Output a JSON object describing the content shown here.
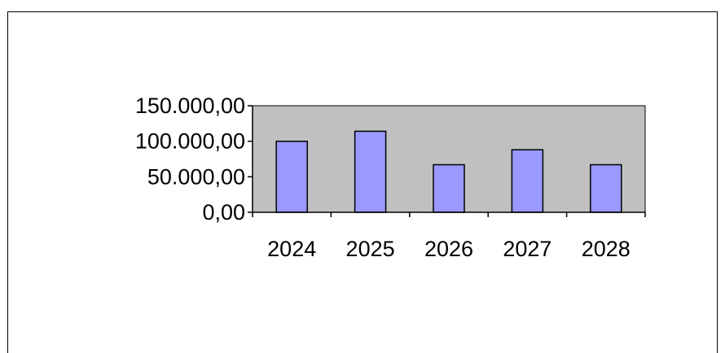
{
  "chart_data": {
    "type": "bar",
    "categories": [
      "2024",
      "2025",
      "2026",
      "2027",
      "2028"
    ],
    "values": [
      100000,
      114000,
      67000,
      88000,
      67000
    ],
    "ylim": [
      0,
      150000
    ],
    "yticks": [
      0,
      50000,
      100000,
      150000
    ],
    "ytick_labels": [
      "0,00",
      "50.000,00",
      "100.000,00",
      "150.000,00"
    ],
    "grid": false,
    "legend": "none",
    "colors": {
      "bar_fill": "#9999ff",
      "bar_stroke": "#000000",
      "plot_background": "#c0c0c0",
      "axis": "#000000"
    }
  }
}
